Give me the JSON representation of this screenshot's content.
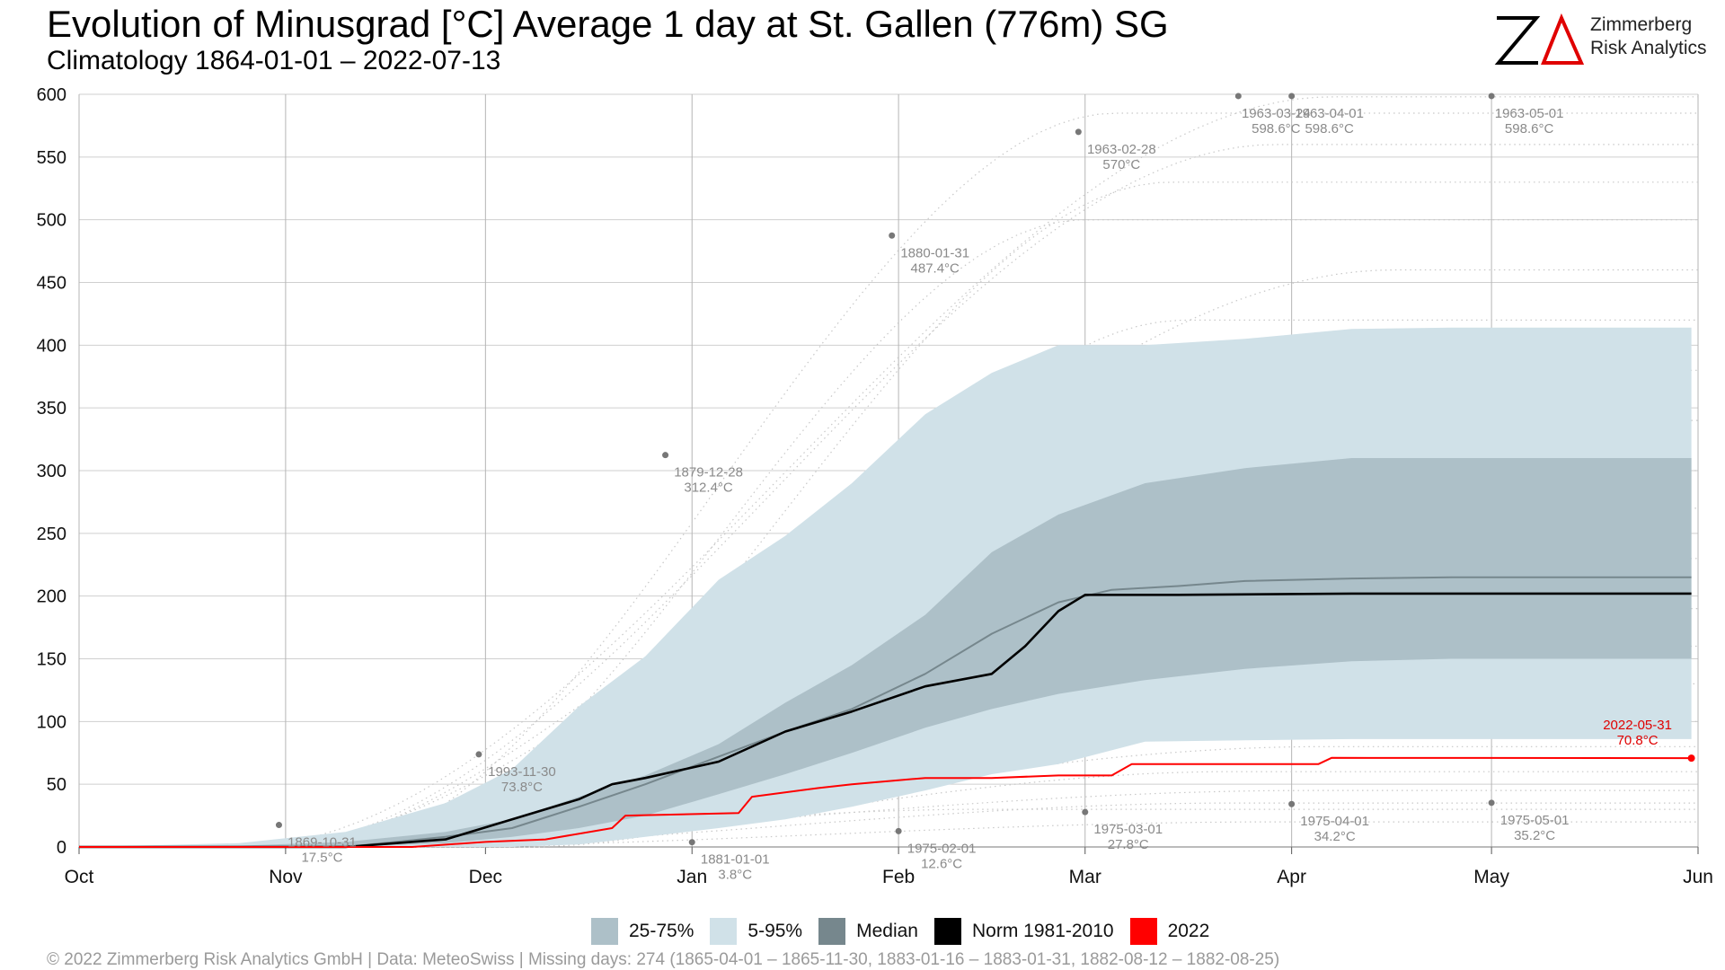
{
  "header": {
    "title": "Evolution of Minusgrad [°C] Average 1 day at St. Gallen (776m) SG",
    "subtitle": "Climatology 1864-01-01 – 2022-07-13"
  },
  "logo": {
    "line1": "Zimmerberg",
    "line2": "Risk Analytics",
    "mark_text": "ZA"
  },
  "footer": {
    "text": "©  2022 Zimmerberg Risk Analytics GmbH | Data: MeteoSwiss | Missing days: 274 (1865-04-01 – 1865-11-30, 1883-01-16 – 1883-01-31, 1882-08-12 – 1882-08-25)"
  },
  "legend": [
    {
      "label": "25-75%",
      "color": "#adc0c8"
    },
    {
      "label": "5-95%",
      "color": "#d0e1e8"
    },
    {
      "label": "Median",
      "color": "#76878d"
    },
    {
      "label": "Norm 1981-2010",
      "color": "#000000"
    },
    {
      "label": "2022",
      "color": "#ff0000"
    }
  ],
  "chart_data": {
    "type": "area",
    "x_axis": {
      "ticks": [
        "Oct",
        "Nov",
        "Dec",
        "Jan",
        "Feb",
        "Mar",
        "Apr",
        "May",
        "Jun"
      ],
      "start": "Oct 1",
      "end": "Jun 1"
    },
    "y_axis": {
      "ticks": [
        0,
        50,
        100,
        150,
        200,
        250,
        300,
        350,
        400,
        450,
        500,
        550,
        600
      ],
      "ylim": [
        0,
        600
      ]
    },
    "grid": true,
    "legend_position": "bottom",
    "series": [
      {
        "name": "5-95%",
        "kind": "band",
        "x": [
          "10-01",
          "10-25",
          "11-10",
          "11-25",
          "12-05",
          "12-15",
          "12-25",
          "01-05",
          "01-15",
          "01-25",
          "02-05",
          "02-15",
          "02-25",
          "03-10",
          "03-25",
          "04-10",
          "04-25",
          "05-10",
          "05-31"
        ],
        "lower": [
          0,
          0,
          0,
          0,
          0,
          2,
          8,
          15,
          22,
          32,
          45,
          58,
          66,
          84,
          85,
          86,
          86,
          86,
          86
        ],
        "upper": [
          0,
          3,
          12,
          35,
          62,
          112,
          152,
          213,
          248,
          290,
          345,
          378,
          400,
          400,
          405,
          413,
          414,
          414,
          414
        ]
      },
      {
        "name": "25-75%",
        "kind": "band",
        "x": [
          "10-01",
          "10-25",
          "11-10",
          "11-25",
          "12-05",
          "12-15",
          "12-25",
          "01-05",
          "01-15",
          "01-25",
          "02-05",
          "02-15",
          "02-25",
          "03-10",
          "03-25",
          "04-10",
          "04-25",
          "05-10",
          "05-31"
        ],
        "lower": [
          0,
          0,
          0,
          3,
          8,
          15,
          25,
          42,
          58,
          75,
          95,
          110,
          122,
          133,
          142,
          148,
          150,
          150,
          150
        ],
        "upper": [
          0,
          1,
          4,
          12,
          22,
          40,
          57,
          82,
          115,
          145,
          185,
          235,
          265,
          290,
          302,
          310,
          310,
          310,
          310
        ]
      },
      {
        "name": "Median",
        "x": [
          "10-01",
          "11-10",
          "11-25",
          "12-05",
          "12-15",
          "12-25",
          "01-05",
          "01-15",
          "01-25",
          "02-05",
          "02-15",
          "02-25",
          "03-05",
          "03-15",
          "03-25",
          "04-10",
          "04-25",
          "05-31"
        ],
        "values": [
          0,
          0,
          8,
          15,
          32,
          50,
          72,
          92,
          110,
          138,
          170,
          195,
          205,
          208,
          212,
          214,
          215,
          215
        ]
      },
      {
        "name": "Norm 1981-2010",
        "x": [
          "10-01",
          "11-10",
          "11-25",
          "12-05",
          "12-15",
          "12-20",
          "12-25",
          "01-05",
          "01-15",
          "01-25",
          "02-05",
          "02-15",
          "02-20",
          "02-25",
          "03-01",
          "03-15",
          "04-10",
          "05-31"
        ],
        "values": [
          0,
          0,
          6,
          22,
          38,
          50,
          55,
          68,
          92,
          108,
          128,
          138,
          160,
          188,
          201,
          201,
          202,
          202
        ]
      },
      {
        "name": "2022",
        "x": [
          "10-01",
          "11-20",
          "12-01",
          "12-10",
          "12-20",
          "12-22",
          "01-08",
          "01-10",
          "01-20",
          "01-25",
          "02-05",
          "02-15",
          "02-25",
          "03-05",
          "03-08",
          "04-05",
          "04-07",
          "05-31"
        ],
        "values": [
          0,
          0,
          4,
          6,
          15,
          25,
          27,
          40,
          47,
          50,
          55,
          55,
          57,
          57,
          66,
          66,
          71,
          70.8
        ]
      }
    ],
    "annotations": [
      {
        "date": "1869-10-31",
        "value_label": "17.5°C",
        "x": "10-31",
        "y": 17.5
      },
      {
        "date": "1993-11-30",
        "value_label": "73.8°C",
        "x": "11-30",
        "y": 73.8
      },
      {
        "date": "1879-12-28",
        "value_label": "312.4°C",
        "x": "12-28",
        "y": 312.4
      },
      {
        "date": "1881-01-01",
        "value_label": "3.8°C",
        "x": "01-01",
        "y": 3.8
      },
      {
        "date": "1880-01-31",
        "value_label": "487.4°C",
        "x": "01-31",
        "y": 487.4
      },
      {
        "date": "1975-02-01",
        "value_label": "12.6°C",
        "x": "02-01",
        "y": 12.6
      },
      {
        "date": "1963-02-28",
        "value_label": "570°C",
        "x": "02-28",
        "y": 570
      },
      {
        "date": "1975-03-01",
        "value_label": "27.8°C",
        "x": "03-01",
        "y": 27.8
      },
      {
        "date": "1963-03-24",
        "value_label": "598.6°C",
        "x": "03-24",
        "y": 598.6
      },
      {
        "date": "1963-04-01",
        "value_label": "598.6°C",
        "x": "04-01",
        "y": 598.6
      },
      {
        "date": "1975-04-01",
        "value_label": "34.2°C",
        "x": "04-01",
        "y": 34.2
      },
      {
        "date": "1963-05-01",
        "value_label": "598.6°C",
        "x": "05-01",
        "y": 598.6
      },
      {
        "date": "1975-05-01",
        "value_label": "35.2°C",
        "x": "05-01",
        "y": 35.2
      },
      {
        "date": "2022-05-31",
        "value_label": "70.8°C",
        "x": "05-31",
        "y": 70.8,
        "highlight": true
      }
    ]
  }
}
